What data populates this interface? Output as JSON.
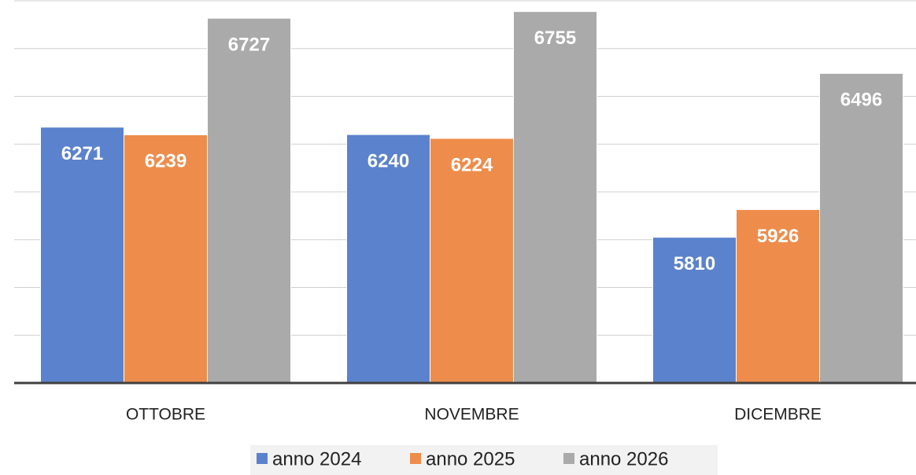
{
  "chart_data": {
    "type": "bar",
    "categories": [
      "OTTOBRE",
      "NOVEMBRE",
      "DICEMBRE"
    ],
    "series": [
      {
        "name": "anno 2024",
        "color": "#5b82cc",
        "values": [
          6271,
          6240,
          5810
        ]
      },
      {
        "name": "anno 2025",
        "color": "#ee8c4b",
        "values": [
          6239,
          6224,
          5926
        ]
      },
      {
        "name": "anno 2026",
        "color": "#aaaaaa",
        "values": [
          6727,
          6755,
          6496
        ]
      }
    ],
    "ylim": [
      5200,
      6800
    ],
    "yticks": [
      5200,
      5400,
      5600,
      5800,
      6000,
      6200,
      6400,
      6600,
      6800
    ],
    "grid": true,
    "legend": "bottom"
  }
}
